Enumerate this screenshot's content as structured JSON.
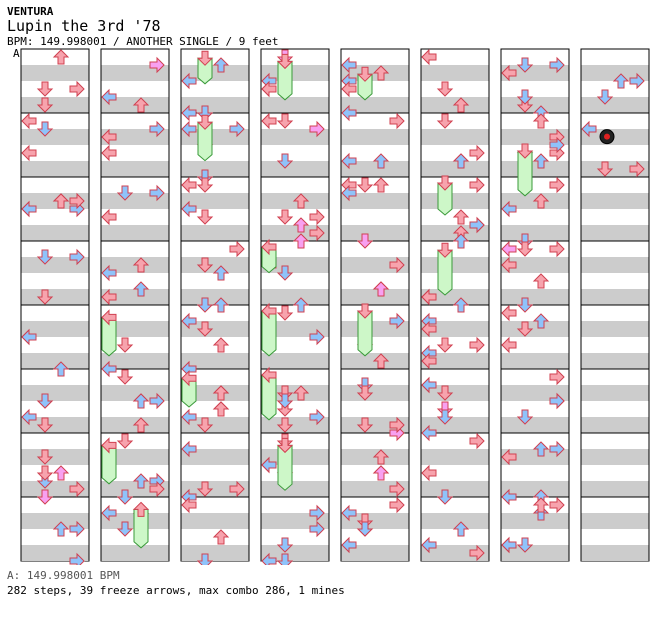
{
  "header": {
    "artist": "VENTURA",
    "title": "Lupin the 3rd '78",
    "info": "BPM: 149.998001 / ANOTHER SINGLE / 9 feet",
    "bpm_marker": "A"
  },
  "footer": {
    "bpm": "A: 149.998001 BPM",
    "stats": "282 steps, 39 freeze arrows, max combo 286, 1 mines"
  },
  "colors": {
    "left": "#f7a3ad",
    "right": "#f7a3ad",
    "up": "#f7a3ad",
    "down": "#f7a3ad",
    "blue": "#8fc3fa",
    "pink": "#f8a0f0",
    "freeze": "#cdf7c8",
    "freeze_border": "#3a9a3a",
    "stripe": "#cccccc"
  },
  "chart_data": {
    "type": "table",
    "measures_per_column": 4,
    "columns": 8,
    "notes": [
      {
        "c": 0,
        "m": 0,
        "b": 0.0,
        "d": "up"
      },
      {
        "c": 0,
        "m": 0,
        "b": 0.0,
        "d": "up"
      }
    ],
    "mine": {
      "c": 7,
      "m": 1,
      "b": 0.37
    },
    "freezes": [
      {
        "c": 1,
        "m": 4,
        "b0": 0.1,
        "b1": 0.7,
        "lane": 0
      },
      {
        "c": 1,
        "m": 6,
        "b0": 0.1,
        "b1": 0.7,
        "lane": 0
      },
      {
        "c": 1,
        "m": 7,
        "b0": 0.1,
        "b1": 0.7,
        "lane": 2
      },
      {
        "c": 2,
        "m": 0,
        "b0": 0.05,
        "b1": 0.45,
        "lane": 1
      },
      {
        "c": 2,
        "m": 1,
        "b0": 0.05,
        "b1": 0.65,
        "lane": 1
      },
      {
        "c": 2,
        "m": 5,
        "b0": 0.05,
        "b1": 0.5,
        "lane": 0
      },
      {
        "c": 3,
        "m": 0,
        "b0": 0.1,
        "b1": 0.7,
        "lane": 1
      },
      {
        "c": 3,
        "m": 3,
        "b0": 0.0,
        "b1": 0.4,
        "lane": 0
      },
      {
        "c": 3,
        "m": 4,
        "b0": 0.0,
        "b1": 0.7,
        "lane": 0
      },
      {
        "c": 3,
        "m": 5,
        "b0": 0.0,
        "b1": 0.7,
        "lane": 0
      },
      {
        "c": 3,
        "m": 6,
        "b0": 0.1,
        "b1": 0.8,
        "lane": 1
      },
      {
        "c": 4,
        "m": 0,
        "b0": 0.3,
        "b1": 0.7,
        "lane": 1
      },
      {
        "c": 4,
        "m": 4,
        "b0": 0.0,
        "b1": 0.7,
        "lane": 1
      },
      {
        "c": 5,
        "m": 2,
        "b0": 0.0,
        "b1": 0.5,
        "lane": 1
      },
      {
        "c": 5,
        "m": 3,
        "b0": 0.05,
        "b1": 0.75,
        "lane": 1
      },
      {
        "c": 6,
        "m": 1,
        "b0": 0.5,
        "b1": 1.2,
        "lane": 1
      }
    ]
  }
}
